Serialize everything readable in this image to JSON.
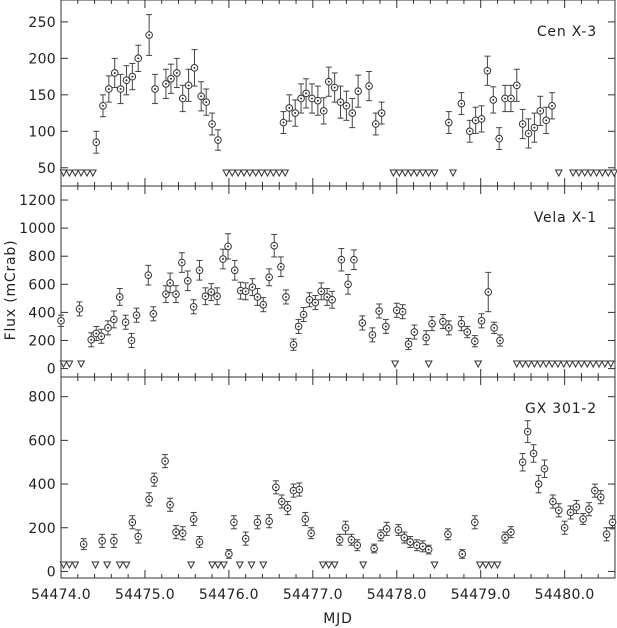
{
  "chart_data": {
    "type": "scatter",
    "xlabel": "MJD",
    "ylabel": "Flux (mCrab)",
    "xlim": [
      54474.0,
      54480.6
    ],
    "x_ticks": [
      54474.0,
      54475.0,
      54476.0,
      54477.0,
      54478.0,
      54479.0,
      54480.0
    ],
    "x_tick_labels": [
      "54474.0",
      "54475.0",
      "54476.0",
      "54477.0",
      "54478.0",
      "54479.0",
      "54480.0"
    ],
    "panels": [
      {
        "name": "Cen X-3",
        "ylim": [
          25,
          280
        ],
        "y_ticks": [
          50,
          100,
          150,
          200,
          250
        ],
        "points": [
          [
            54474.42,
            85,
            15
          ],
          [
            54474.5,
            135,
            15
          ],
          [
            54474.57,
            158,
            18
          ],
          [
            54474.64,
            180,
            20
          ],
          [
            54474.71,
            158,
            20
          ],
          [
            54474.78,
            170,
            20
          ],
          [
            54474.85,
            175,
            18
          ],
          [
            54474.92,
            200,
            18
          ],
          [
            54475.05,
            232,
            28
          ],
          [
            54475.12,
            158,
            20
          ],
          [
            54475.25,
            165,
            20
          ],
          [
            54475.31,
            172,
            20
          ],
          [
            54475.38,
            180,
            20
          ],
          [
            54475.45,
            145,
            18
          ],
          [
            54475.52,
            163,
            22
          ],
          [
            54475.59,
            187,
            25
          ],
          [
            54475.67,
            148,
            20
          ],
          [
            54475.73,
            140,
            18
          ],
          [
            54475.8,
            110,
            15
          ],
          [
            54475.87,
            88,
            14
          ],
          [
            54476.65,
            112,
            15
          ],
          [
            54476.72,
            132,
            18
          ],
          [
            54476.79,
            125,
            18
          ],
          [
            54476.86,
            145,
            20
          ],
          [
            54476.92,
            152,
            20
          ],
          [
            54476.99,
            145,
            20
          ],
          [
            54477.06,
            142,
            20
          ],
          [
            54477.13,
            128,
            18
          ],
          [
            54477.19,
            168,
            20
          ],
          [
            54477.26,
            160,
            20
          ],
          [
            54477.33,
            140,
            22
          ],
          [
            54477.4,
            135,
            20
          ],
          [
            54477.47,
            125,
            20
          ],
          [
            54477.54,
            155,
            22
          ],
          [
            54477.67,
            162,
            20
          ],
          [
            54477.75,
            110,
            15
          ],
          [
            54477.82,
            125,
            15
          ],
          [
            54478.62,
            112,
            15
          ],
          [
            54478.77,
            138,
            15
          ],
          [
            54478.87,
            100,
            15
          ],
          [
            54478.94,
            115,
            18
          ],
          [
            54479.01,
            117,
            18
          ],
          [
            54479.08,
            183,
            20
          ],
          [
            54479.15,
            143,
            18
          ],
          [
            54479.22,
            90,
            15
          ],
          [
            54479.29,
            145,
            18
          ],
          [
            54479.36,
            145,
            18
          ],
          [
            54479.43,
            163,
            22
          ],
          [
            54479.5,
            110,
            20
          ],
          [
            54479.57,
            97,
            20
          ],
          [
            54479.64,
            105,
            20
          ],
          [
            54479.71,
            128,
            20
          ],
          [
            54479.78,
            115,
            18
          ],
          [
            54479.85,
            135,
            18
          ]
        ],
        "upper_limits": [
          54474.03,
          54474.1,
          54474.17,
          54474.24,
          54474.31,
          54474.38,
          54475.97,
          54476.04,
          54476.11,
          54476.18,
          54476.25,
          54476.32,
          54476.39,
          54476.46,
          54476.53,
          54476.6,
          54476.67,
          54477.96,
          54478.03,
          54478.1,
          54478.17,
          54478.24,
          54478.31,
          54478.38,
          54478.45,
          54478.67,
          54479.93,
          54480.1,
          54480.17,
          54480.24,
          54480.31,
          54480.38,
          54480.45,
          54480.52,
          54480.59
        ]
      },
      {
        "name": "Vela X-1",
        "ylim": [
          -60,
          1300
        ],
        "y_ticks": [
          0,
          200,
          400,
          600,
          800,
          1000,
          1200
        ],
        "points": [
          [
            54474.0,
            340,
            40
          ],
          [
            54474.22,
            425,
            50
          ],
          [
            54474.36,
            205,
            50
          ],
          [
            54474.42,
            250,
            50
          ],
          [
            54474.48,
            230,
            50
          ],
          [
            54474.56,
            290,
            50
          ],
          [
            54474.63,
            350,
            60
          ],
          [
            54474.7,
            510,
            60
          ],
          [
            54474.77,
            330,
            50
          ],
          [
            54474.84,
            200,
            50
          ],
          [
            54474.9,
            380,
            50
          ],
          [
            54475.04,
            665,
            70
          ],
          [
            54475.1,
            390,
            50
          ],
          [
            54475.25,
            530,
            60
          ],
          [
            54475.3,
            610,
            70
          ],
          [
            54475.37,
            530,
            60
          ],
          [
            54475.44,
            755,
            70
          ],
          [
            54475.51,
            625,
            70
          ],
          [
            54475.58,
            440,
            50
          ],
          [
            54475.65,
            700,
            70
          ],
          [
            54475.72,
            515,
            60
          ],
          [
            54475.79,
            545,
            60
          ],
          [
            54475.86,
            515,
            60
          ],
          [
            54475.93,
            780,
            70
          ],
          [
            54475.99,
            870,
            90
          ],
          [
            54476.07,
            700,
            70
          ],
          [
            54476.14,
            555,
            60
          ],
          [
            54476.2,
            550,
            60
          ],
          [
            54476.28,
            580,
            60
          ],
          [
            54476.34,
            510,
            60
          ],
          [
            54476.41,
            455,
            50
          ],
          [
            54476.48,
            650,
            60
          ],
          [
            54476.54,
            875,
            80
          ],
          [
            54476.62,
            725,
            70
          ],
          [
            54476.68,
            510,
            50
          ],
          [
            54476.77,
            170,
            40
          ],
          [
            54476.83,
            300,
            50
          ],
          [
            54476.89,
            385,
            50
          ],
          [
            54476.96,
            490,
            50
          ],
          [
            54477.03,
            470,
            50
          ],
          [
            54477.1,
            550,
            60
          ],
          [
            54477.17,
            510,
            60
          ],
          [
            54477.23,
            490,
            60
          ],
          [
            54477.34,
            775,
            80
          ],
          [
            54477.42,
            600,
            70
          ],
          [
            54477.49,
            775,
            70
          ],
          [
            54477.59,
            325,
            50
          ],
          [
            54477.71,
            240,
            50
          ],
          [
            54477.79,
            410,
            50
          ],
          [
            54477.87,
            300,
            50
          ],
          [
            54478.0,
            415,
            50
          ],
          [
            54478.07,
            405,
            50
          ],
          [
            54478.14,
            175,
            40
          ],
          [
            54478.21,
            260,
            50
          ],
          [
            54478.35,
            220,
            50
          ],
          [
            54478.42,
            320,
            50
          ],
          [
            54478.55,
            335,
            50
          ],
          [
            54478.62,
            290,
            50
          ],
          [
            54478.77,
            320,
            50
          ],
          [
            54478.84,
            260,
            40
          ],
          [
            54478.93,
            195,
            40
          ],
          [
            54479.01,
            340,
            50
          ],
          [
            54479.09,
            545,
            140
          ],
          [
            54479.16,
            290,
            40
          ],
          [
            54479.23,
            200,
            40
          ]
        ],
        "upper_limits": [
          54474.03,
          54474.1,
          54474.24,
          54477.98,
          54478.38,
          54478.97,
          54479.43,
          54479.5,
          54479.57,
          54479.64,
          54479.71,
          54479.78,
          54479.85,
          54479.92,
          54479.99,
          54480.06,
          54480.13,
          54480.2,
          54480.27,
          54480.34,
          54480.41,
          54480.48,
          54480.55
        ]
      },
      {
        "name": "GX 301-2",
        "ylim": [
          -30,
          890
        ],
        "y_ticks": [
          0,
          200,
          400,
          600,
          800
        ],
        "points": [
          [
            54474.27,
            125,
            25
          ],
          [
            54474.49,
            140,
            30
          ],
          [
            54474.63,
            140,
            30
          ],
          [
            54474.85,
            225,
            30
          ],
          [
            54474.92,
            160,
            30
          ],
          [
            54475.05,
            330,
            30
          ],
          [
            54475.11,
            420,
            30
          ],
          [
            54475.24,
            505,
            30
          ],
          [
            54475.3,
            305,
            30
          ],
          [
            54475.37,
            180,
            30
          ],
          [
            54475.45,
            175,
            30
          ],
          [
            54475.58,
            240,
            30
          ],
          [
            54475.65,
            135,
            25
          ],
          [
            54476.0,
            80,
            20
          ],
          [
            54476.06,
            225,
            30
          ],
          [
            54476.2,
            150,
            30
          ],
          [
            54476.34,
            225,
            30
          ],
          [
            54476.48,
            230,
            30
          ],
          [
            54476.56,
            385,
            30
          ],
          [
            54476.63,
            320,
            30
          ],
          [
            54476.7,
            290,
            30
          ],
          [
            54476.77,
            370,
            30
          ],
          [
            54476.84,
            375,
            30
          ],
          [
            54476.91,
            240,
            30
          ],
          [
            54476.98,
            175,
            25
          ],
          [
            54477.32,
            145,
            25
          ],
          [
            54477.39,
            200,
            30
          ],
          [
            54477.46,
            145,
            25
          ],
          [
            54477.53,
            120,
            25
          ],
          [
            54477.73,
            105,
            20
          ],
          [
            54477.81,
            165,
            25
          ],
          [
            54477.88,
            195,
            30
          ],
          [
            54478.02,
            190,
            25
          ],
          [
            54478.09,
            155,
            25
          ],
          [
            54478.16,
            135,
            25
          ],
          [
            54478.24,
            120,
            25
          ],
          [
            54478.31,
            115,
            25
          ],
          [
            54478.38,
            100,
            20
          ],
          [
            54478.61,
            170,
            25
          ],
          [
            54478.78,
            80,
            20
          ],
          [
            54478.93,
            225,
            30
          ],
          [
            54479.29,
            155,
            25
          ],
          [
            54479.36,
            180,
            25
          ],
          [
            54479.5,
            500,
            40
          ],
          [
            54479.56,
            640,
            50
          ],
          [
            54479.63,
            540,
            40
          ],
          [
            54479.69,
            400,
            40
          ],
          [
            54479.76,
            470,
            40
          ],
          [
            54479.86,
            320,
            30
          ],
          [
            54479.93,
            280,
            30
          ],
          [
            54480.0,
            200,
            30
          ],
          [
            54480.07,
            270,
            30
          ],
          [
            54480.14,
            295,
            30
          ],
          [
            54480.22,
            240,
            25
          ],
          [
            54480.29,
            285,
            30
          ],
          [
            54480.36,
            370,
            30
          ],
          [
            54480.43,
            340,
            30
          ],
          [
            54480.5,
            170,
            30
          ],
          [
            54480.57,
            225,
            30
          ]
        ],
        "upper_limits": [
          54474.03,
          54474.1,
          54474.17,
          54474.41,
          54474.55,
          54474.7,
          54474.78,
          54475.55,
          54475.8,
          54475.87,
          54475.94,
          54476.13,
          54476.27,
          54476.41,
          54477.12,
          54477.19,
          54477.26,
          54477.6,
          54478.45,
          54478.99,
          54479.06,
          54479.13,
          54479.2
        ]
      }
    ]
  }
}
